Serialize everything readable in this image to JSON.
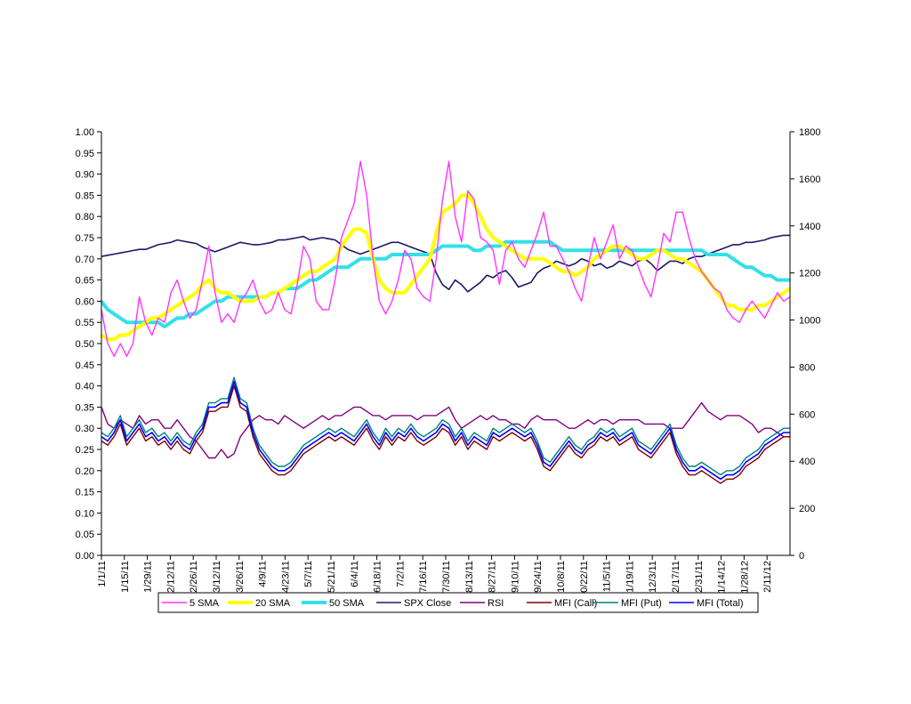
{
  "chart_data": {
    "type": "line",
    "y_left": {
      "min": 0,
      "max": 1.0,
      "step": 0.05,
      "tick_labels": [
        "0.00",
        "0.05",
        "0.10",
        "0.15",
        "0.20",
        "0.25",
        "0.30",
        "0.35",
        "0.40",
        "0.45",
        "0.50",
        "0.55",
        "0.60",
        "0.65",
        "0.70",
        "0.75",
        "0.80",
        "0.85",
        "0.90",
        "0.95",
        "1.00"
      ]
    },
    "y_right": {
      "min": 0,
      "max": 1800,
      "step": 200,
      "tick_labels": [
        "0",
        "200",
        "400",
        "600",
        "800",
        "1000",
        "1200",
        "1400",
        "1600",
        "1800"
      ]
    },
    "x_tick_labels": [
      "1/1/11",
      "1/15/11",
      "1/29/11",
      "2/12/11",
      "2/26/11",
      "3/12/11",
      "3/26/11",
      "4/9/11",
      "4/23/11",
      "5/7/11",
      "5/21/11",
      "6/4/11",
      "6/18/11",
      "7/2/11",
      "7/16/11",
      "7/30/11",
      "8/13/11",
      "8/27/11",
      "9/10/11",
      "9/24/11",
      "10/8/11",
      "10/22/11",
      "11/5/11",
      "11/19/11",
      "12/3/11",
      "12/17/11",
      "12/31/11",
      "1/14/12",
      "1/28/12",
      "2/11/12"
    ],
    "grid": false,
    "legend_position": "bottom",
    "series": [
      {
        "name": "5 SMA",
        "axis": "left",
        "color": "#ff33ff",
        "values": [
          0.58,
          0.5,
          0.47,
          0.5,
          0.47,
          0.5,
          0.61,
          0.55,
          0.52,
          0.56,
          0.55,
          0.62,
          0.65,
          0.6,
          0.56,
          0.58,
          0.65,
          0.73,
          0.62,
          0.55,
          0.57,
          0.55,
          0.6,
          0.62,
          0.65,
          0.6,
          0.57,
          0.58,
          0.62,
          0.58,
          0.57,
          0.64,
          0.73,
          0.7,
          0.6,
          0.58,
          0.58,
          0.65,
          0.75,
          0.79,
          0.83,
          0.93,
          0.85,
          0.7,
          0.6,
          0.57,
          0.6,
          0.65,
          0.72,
          0.7,
          0.63,
          0.61,
          0.6,
          0.7,
          0.84,
          0.93,
          0.8,
          0.74,
          0.86,
          0.84,
          0.75,
          0.74,
          0.72,
          0.64,
          0.72,
          0.74,
          0.7,
          0.68,
          0.72,
          0.76,
          0.81,
          0.73,
          0.73,
          0.7,
          0.67,
          0.63,
          0.6,
          0.68,
          0.75,
          0.7,
          0.74,
          0.78,
          0.7,
          0.73,
          0.72,
          0.68,
          0.64,
          0.61,
          0.68,
          0.76,
          0.74,
          0.81,
          0.81,
          0.75,
          0.7,
          0.67,
          0.65,
          0.63,
          0.62,
          0.58,
          0.56,
          0.55,
          0.58,
          0.6,
          0.58,
          0.56,
          0.59,
          0.62,
          0.6,
          0.61
        ]
      },
      {
        "name": "20 SMA",
        "axis": "left",
        "color": "#ffff00",
        "values": [
          0.52,
          0.51,
          0.51,
          0.52,
          0.52,
          0.53,
          0.54,
          0.55,
          0.56,
          0.56,
          0.57,
          0.58,
          0.59,
          0.6,
          0.61,
          0.62,
          0.64,
          0.65,
          0.63,
          0.62,
          0.62,
          0.61,
          0.6,
          0.6,
          0.6,
          0.61,
          0.61,
          0.62,
          0.62,
          0.63,
          0.64,
          0.65,
          0.66,
          0.67,
          0.67,
          0.68,
          0.69,
          0.7,
          0.73,
          0.75,
          0.77,
          0.77,
          0.76,
          0.7,
          0.65,
          0.63,
          0.62,
          0.62,
          0.62,
          0.64,
          0.66,
          0.68,
          0.7,
          0.76,
          0.81,
          0.82,
          0.83,
          0.85,
          0.85,
          0.83,
          0.8,
          0.77,
          0.75,
          0.74,
          0.73,
          0.72,
          0.71,
          0.7,
          0.7,
          0.7,
          0.7,
          0.69,
          0.68,
          0.67,
          0.67,
          0.66,
          0.67,
          0.68,
          0.7,
          0.71,
          0.72,
          0.73,
          0.73,
          0.72,
          0.71,
          0.7,
          0.7,
          0.71,
          0.72,
          0.72,
          0.71,
          0.7,
          0.7,
          0.69,
          0.68,
          0.67,
          0.65,
          0.63,
          0.61,
          0.59,
          0.59,
          0.58,
          0.58,
          0.58,
          0.59,
          0.59,
          0.6,
          0.61,
          0.62,
          0.63
        ]
      },
      {
        "name": "50 SMA",
        "axis": "left",
        "color": "#33e0e8",
        "values": [
          0.6,
          0.58,
          0.57,
          0.56,
          0.55,
          0.55,
          0.55,
          0.55,
          0.55,
          0.55,
          0.54,
          0.55,
          0.56,
          0.56,
          0.57,
          0.57,
          0.58,
          0.59,
          0.6,
          0.6,
          0.61,
          0.61,
          0.61,
          0.61,
          0.61,
          0.61,
          0.61,
          0.62,
          0.62,
          0.63,
          0.63,
          0.63,
          0.64,
          0.65,
          0.65,
          0.66,
          0.67,
          0.68,
          0.68,
          0.68,
          0.69,
          0.7,
          0.7,
          0.7,
          0.7,
          0.7,
          0.71,
          0.71,
          0.71,
          0.71,
          0.71,
          0.71,
          0.71,
          0.72,
          0.73,
          0.73,
          0.73,
          0.73,
          0.73,
          0.72,
          0.72,
          0.73,
          0.73,
          0.73,
          0.74,
          0.74,
          0.74,
          0.74,
          0.74,
          0.74,
          0.74,
          0.74,
          0.73,
          0.72,
          0.72,
          0.72,
          0.72,
          0.72,
          0.72,
          0.72,
          0.72,
          0.72,
          0.72,
          0.72,
          0.72,
          0.72,
          0.72,
          0.72,
          0.72,
          0.72,
          0.72,
          0.72,
          0.72,
          0.72,
          0.72,
          0.72,
          0.71,
          0.71,
          0.71,
          0.71,
          0.7,
          0.69,
          0.68,
          0.68,
          0.67,
          0.66,
          0.66,
          0.65,
          0.65,
          0.65
        ]
      },
      {
        "name": "SPX Close",
        "axis": "right",
        "color": "#1a1a66",
        "values": [
          1270,
          1275,
          1280,
          1285,
          1290,
          1295,
          1300,
          1300,
          1310,
          1320,
          1325,
          1330,
          1340,
          1335,
          1330,
          1325,
          1310,
          1300,
          1290,
          1300,
          1310,
          1320,
          1330,
          1325,
          1320,
          1320,
          1325,
          1330,
          1340,
          1340,
          1345,
          1350,
          1355,
          1340,
          1345,
          1350,
          1345,
          1340,
          1320,
          1300,
          1290,
          1280,
          1290,
          1300,
          1310,
          1320,
          1330,
          1330,
          1320,
          1310,
          1300,
          1290,
          1280,
          1200,
          1150,
          1130,
          1170,
          1150,
          1120,
          1140,
          1160,
          1190,
          1180,
          1200,
          1210,
          1180,
          1140,
          1150,
          1160,
          1200,
          1220,
          1230,
          1250,
          1240,
          1230,
          1240,
          1260,
          1250,
          1230,
          1240,
          1220,
          1230,
          1250,
          1240,
          1230,
          1250,
          1260,
          1240,
          1210,
          1230,
          1250,
          1250,
          1240,
          1260,
          1270,
          1270,
          1280,
          1290,
          1300,
          1310,
          1320,
          1320,
          1330,
          1330,
          1335,
          1340,
          1350,
          1355,
          1360,
          1360
        ]
      },
      {
        "name": "RSI",
        "axis": "left",
        "color": "#800080",
        "values": [
          0.35,
          0.31,
          0.3,
          0.32,
          0.31,
          0.3,
          0.33,
          0.31,
          0.32,
          0.32,
          0.3,
          0.3,
          0.32,
          0.3,
          0.28,
          0.27,
          0.25,
          0.23,
          0.23,
          0.25,
          0.23,
          0.24,
          0.28,
          0.3,
          0.32,
          0.33,
          0.32,
          0.32,
          0.31,
          0.33,
          0.32,
          0.31,
          0.3,
          0.31,
          0.32,
          0.33,
          0.32,
          0.33,
          0.33,
          0.34,
          0.35,
          0.35,
          0.34,
          0.33,
          0.33,
          0.32,
          0.33,
          0.33,
          0.33,
          0.33,
          0.32,
          0.33,
          0.33,
          0.33,
          0.34,
          0.35,
          0.32,
          0.3,
          0.31,
          0.32,
          0.33,
          0.32,
          0.33,
          0.32,
          0.32,
          0.31,
          0.31,
          0.3,
          0.32,
          0.33,
          0.32,
          0.32,
          0.32,
          0.31,
          0.3,
          0.3,
          0.31,
          0.32,
          0.31,
          0.32,
          0.32,
          0.31,
          0.32,
          0.32,
          0.32,
          0.32,
          0.31,
          0.31,
          0.31,
          0.31,
          0.3,
          0.3,
          0.3,
          0.32,
          0.34,
          0.36,
          0.34,
          0.33,
          0.32,
          0.33,
          0.33,
          0.33,
          0.32,
          0.31,
          0.29,
          0.3,
          0.3,
          0.29,
          0.28,
          0.28
        ]
      },
      {
        "name": "MFI (Call)",
        "axis": "left",
        "color": "#800000",
        "values": [
          0.27,
          0.26,
          0.28,
          0.31,
          0.26,
          0.28,
          0.3,
          0.27,
          0.28,
          0.26,
          0.27,
          0.25,
          0.27,
          0.25,
          0.24,
          0.27,
          0.29,
          0.34,
          0.34,
          0.35,
          0.35,
          0.4,
          0.35,
          0.34,
          0.28,
          0.24,
          0.22,
          0.2,
          0.19,
          0.19,
          0.2,
          0.22,
          0.24,
          0.25,
          0.26,
          0.27,
          0.28,
          0.27,
          0.28,
          0.27,
          0.26,
          0.28,
          0.3,
          0.27,
          0.25,
          0.28,
          0.26,
          0.28,
          0.27,
          0.29,
          0.27,
          0.26,
          0.27,
          0.28,
          0.3,
          0.29,
          0.26,
          0.28,
          0.25,
          0.27,
          0.26,
          0.25,
          0.28,
          0.27,
          0.28,
          0.29,
          0.28,
          0.27,
          0.28,
          0.25,
          0.21,
          0.2,
          0.22,
          0.24,
          0.26,
          0.24,
          0.23,
          0.25,
          0.26,
          0.28,
          0.27,
          0.28,
          0.26,
          0.27,
          0.28,
          0.25,
          0.24,
          0.23,
          0.25,
          0.27,
          0.29,
          0.24,
          0.21,
          0.19,
          0.19,
          0.2,
          0.19,
          0.18,
          0.17,
          0.18,
          0.18,
          0.19,
          0.21,
          0.22,
          0.23,
          0.25,
          0.26,
          0.27,
          0.28,
          0.28
        ]
      },
      {
        "name": "MFI (Put)",
        "axis": "left",
        "color": "#008080",
        "values": [
          0.29,
          0.28,
          0.3,
          0.33,
          0.28,
          0.3,
          0.32,
          0.29,
          0.3,
          0.28,
          0.29,
          0.27,
          0.29,
          0.27,
          0.26,
          0.29,
          0.31,
          0.36,
          0.36,
          0.37,
          0.37,
          0.42,
          0.37,
          0.36,
          0.3,
          0.26,
          0.24,
          0.22,
          0.21,
          0.21,
          0.22,
          0.24,
          0.26,
          0.27,
          0.28,
          0.29,
          0.3,
          0.29,
          0.3,
          0.29,
          0.28,
          0.3,
          0.32,
          0.29,
          0.27,
          0.3,
          0.28,
          0.3,
          0.29,
          0.31,
          0.29,
          0.28,
          0.29,
          0.3,
          0.32,
          0.31,
          0.28,
          0.3,
          0.27,
          0.29,
          0.28,
          0.27,
          0.3,
          0.29,
          0.3,
          0.31,
          0.3,
          0.29,
          0.3,
          0.27,
          0.23,
          0.22,
          0.24,
          0.26,
          0.28,
          0.26,
          0.25,
          0.27,
          0.28,
          0.3,
          0.29,
          0.3,
          0.28,
          0.29,
          0.3,
          0.27,
          0.26,
          0.25,
          0.27,
          0.29,
          0.31,
          0.26,
          0.23,
          0.21,
          0.21,
          0.22,
          0.21,
          0.2,
          0.19,
          0.2,
          0.2,
          0.21,
          0.23,
          0.24,
          0.25,
          0.27,
          0.28,
          0.29,
          0.3,
          0.3
        ]
      },
      {
        "name": "MFI (Total)",
        "axis": "left",
        "color": "#0000ff",
        "values": [
          0.28,
          0.27,
          0.29,
          0.32,
          0.27,
          0.29,
          0.31,
          0.28,
          0.29,
          0.27,
          0.28,
          0.26,
          0.28,
          0.26,
          0.25,
          0.28,
          0.3,
          0.35,
          0.35,
          0.36,
          0.36,
          0.41,
          0.36,
          0.35,
          0.29,
          0.25,
          0.23,
          0.21,
          0.2,
          0.2,
          0.21,
          0.23,
          0.25,
          0.26,
          0.27,
          0.28,
          0.29,
          0.28,
          0.29,
          0.28,
          0.27,
          0.29,
          0.31,
          0.28,
          0.26,
          0.29,
          0.27,
          0.29,
          0.28,
          0.3,
          0.28,
          0.27,
          0.28,
          0.29,
          0.31,
          0.3,
          0.27,
          0.29,
          0.26,
          0.28,
          0.27,
          0.26,
          0.29,
          0.28,
          0.29,
          0.3,
          0.29,
          0.28,
          0.29,
          0.26,
          0.22,
          0.21,
          0.23,
          0.25,
          0.27,
          0.25,
          0.24,
          0.26,
          0.27,
          0.29,
          0.28,
          0.29,
          0.27,
          0.28,
          0.29,
          0.26,
          0.25,
          0.24,
          0.26,
          0.28,
          0.3,
          0.25,
          0.22,
          0.2,
          0.2,
          0.21,
          0.2,
          0.19,
          0.18,
          0.19,
          0.19,
          0.2,
          0.22,
          0.23,
          0.24,
          0.26,
          0.27,
          0.28,
          0.29,
          0.29
        ]
      }
    ]
  }
}
